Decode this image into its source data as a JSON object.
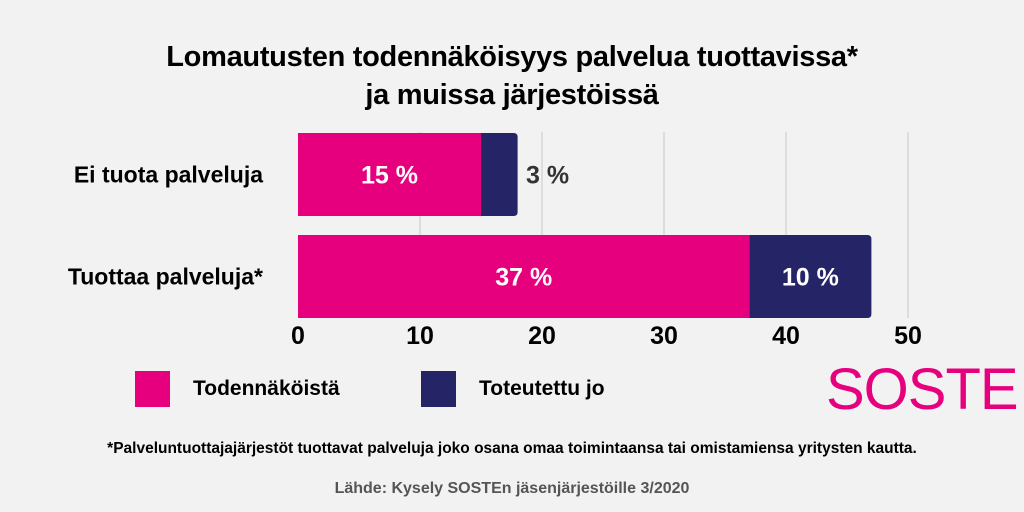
{
  "title_line1": "Lomautusten todennäköisyys palvelua tuottavissa*",
  "title_line2": "ja muissa järjestöissä",
  "brand": "SOSTE",
  "footnote": "*Palveluntuottajajärjestöt tuottavat palveluja joko osana omaa toimintaansa tai omistamiensa yritysten kautta.",
  "source": "Lähde: Kysely SOSTEn jäsenjärjestöille 3/2020",
  "colors": {
    "magenta": "#e6007e",
    "navy": "#252466",
    "background": "#f2f2f2"
  },
  "chart_data": {
    "type": "bar",
    "orientation": "horizontal",
    "stacked": true,
    "title": "Lomautusten todennäköisyys palvelua tuottavissa* ja muissa järjestöissä",
    "categories": [
      "Ei tuota palveluja",
      "Tuottaa palveluja*"
    ],
    "series": [
      {
        "name": "Todennäköistä",
        "color": "#e6007e",
        "values": [
          15,
          37
        ],
        "labels": [
          "15 %",
          "37 %"
        ]
      },
      {
        "name": "Toteutettu jo",
        "color": "#252466",
        "values": [
          3,
          10
        ],
        "labels": [
          "3 %",
          "10 %"
        ]
      }
    ],
    "xlim": [
      0,
      50
    ],
    "xticks": [
      "0",
      "10",
      "20",
      "30",
      "40",
      "50"
    ],
    "grid": true,
    "legend": "bottom-left"
  }
}
